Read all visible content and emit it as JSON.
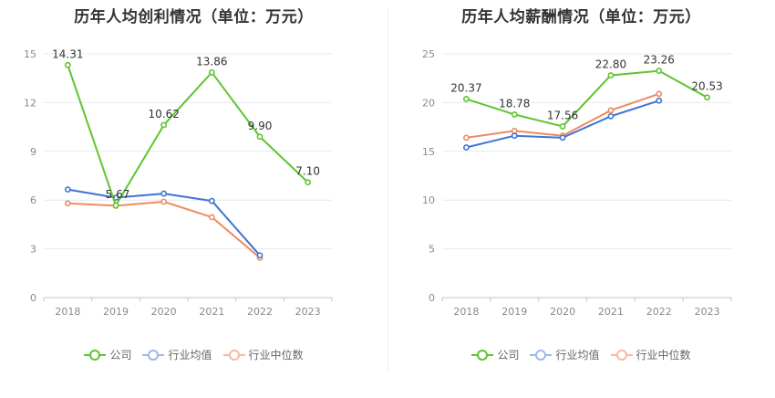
{
  "chart_data": [
    {
      "type": "line",
      "title": "历年人均创利情况（单位：万元）",
      "categories": [
        "2018",
        "2019",
        "2020",
        "2021",
        "2022",
        "2023"
      ],
      "ylim": [
        0,
        15
      ],
      "yticks": [
        0,
        3,
        6,
        9,
        12,
        15
      ],
      "grid": true,
      "legend_position": "bottom",
      "series": [
        {
          "name": "公司",
          "color": "#5ec42f",
          "values": [
            14.31,
            5.67,
            10.62,
            13.86,
            9.9,
            7.1
          ],
          "labels": [
            "14.31",
            "5.67",
            "10.62",
            "13.86",
            "9.90",
            "7.10"
          ]
        },
        {
          "name": "行业均值",
          "color": "#3d74d6",
          "values": [
            6.65,
            6.15,
            6.4,
            5.95,
            2.6,
            null
          ]
        },
        {
          "name": "行业中位数",
          "color": "#ef8a5e",
          "values": [
            5.8,
            5.65,
            5.9,
            4.95,
            2.45,
            null
          ]
        }
      ]
    },
    {
      "type": "line",
      "title": "历年人均薪酬情况（单位：万元）",
      "categories": [
        "2018",
        "2019",
        "2020",
        "2021",
        "2022",
        "2023"
      ],
      "ylim": [
        0,
        25
      ],
      "yticks": [
        0,
        5,
        10,
        15,
        20,
        25
      ],
      "grid": true,
      "legend_position": "bottom",
      "series": [
        {
          "name": "公司",
          "color": "#5ec42f",
          "values": [
            20.37,
            18.78,
            17.56,
            22.8,
            23.26,
            20.53
          ],
          "labels": [
            "20.37",
            "18.78",
            "17.56",
            "22.80",
            "23.26",
            "20.53"
          ]
        },
        {
          "name": "行业均值",
          "color": "#3d74d6",
          "values": [
            15.4,
            16.6,
            16.4,
            18.6,
            20.2,
            null
          ]
        },
        {
          "name": "行业中位数",
          "color": "#ef8a5e",
          "values": [
            16.4,
            17.1,
            16.6,
            19.2,
            20.9,
            null
          ]
        }
      ]
    }
  ],
  "legend": [
    {
      "label": "公司",
      "color": "#5ec42f"
    },
    {
      "label": "行业均值",
      "color": "#9cb8ec"
    },
    {
      "label": "行业中位数",
      "color": "#f6b9a0"
    }
  ]
}
